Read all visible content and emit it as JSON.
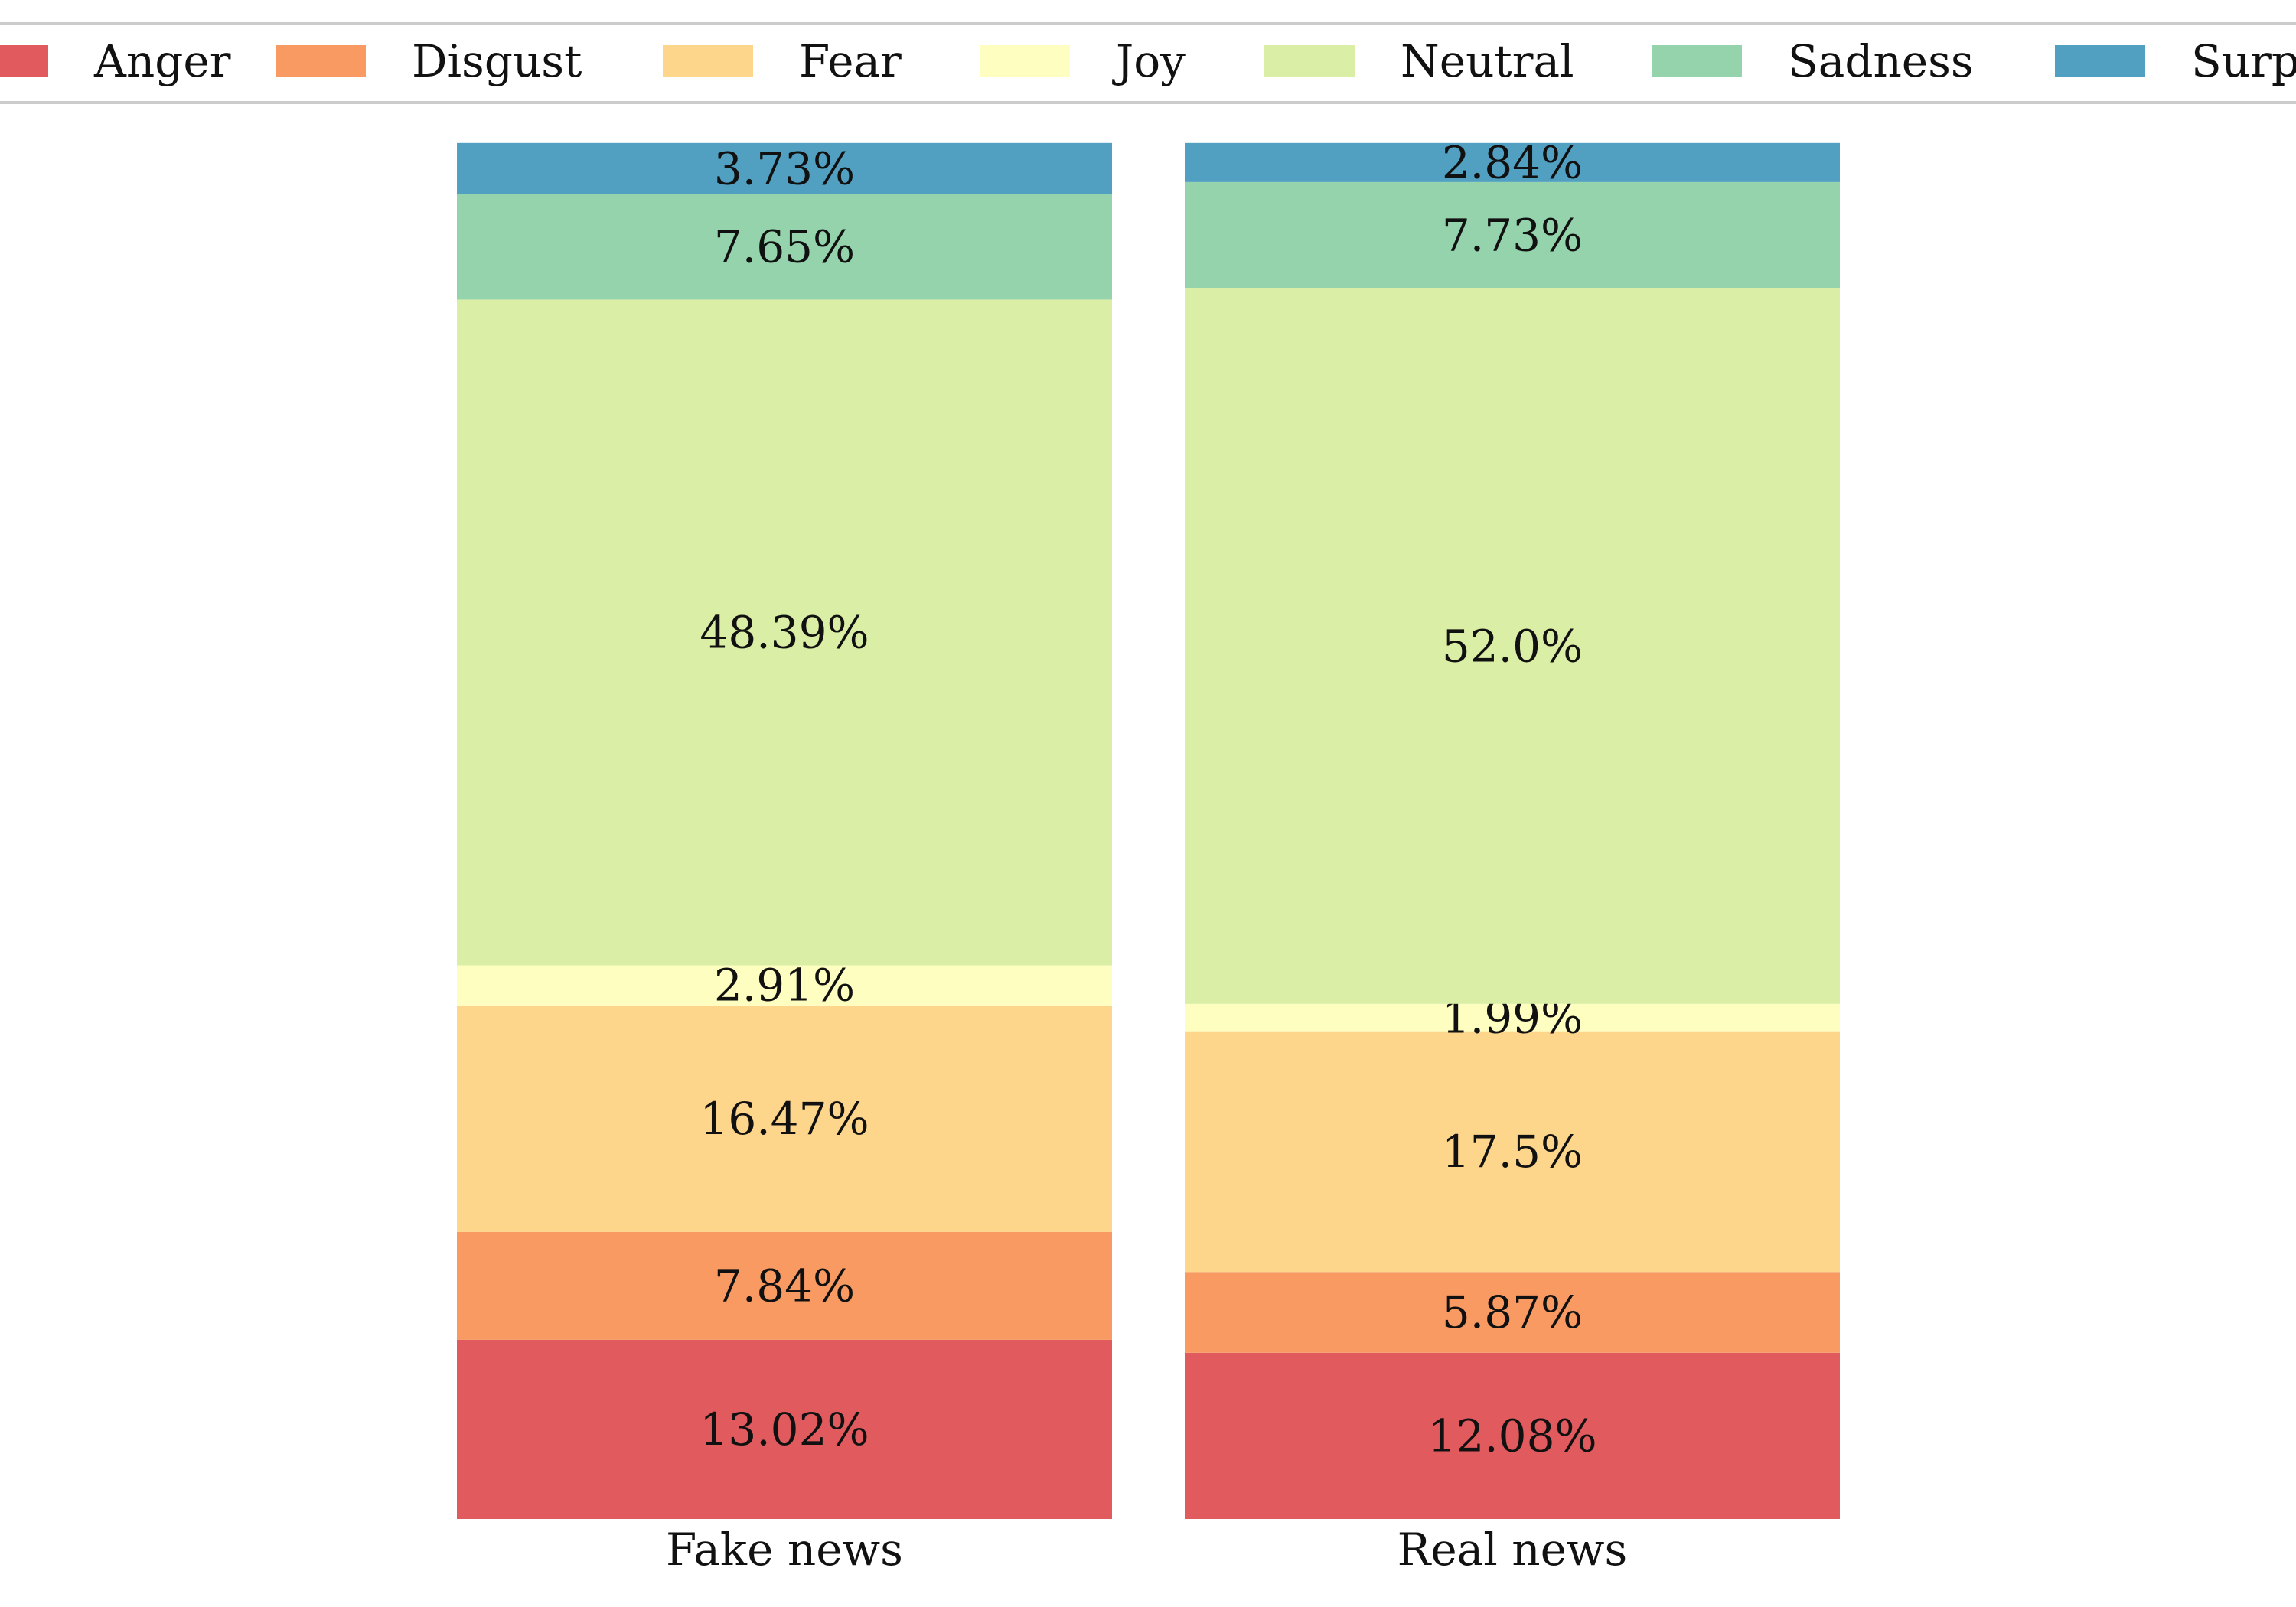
{
  "chart_data": {
    "type": "bar",
    "stacked": true,
    "normalized": true,
    "categories": [
      "Fake news",
      "Real news"
    ],
    "series": [
      {
        "name": "Anger",
        "color": "#e15b5e",
        "values": [
          13.02,
          12.08
        ],
        "labels": [
          "13.02%",
          "12.08%"
        ]
      },
      {
        "name": "Disgust",
        "color": "#f89a62",
        "values": [
          7.84,
          5.87
        ],
        "labels": [
          "7.84%",
          "5.87%"
        ]
      },
      {
        "name": "Fear",
        "color": "#fdd58b",
        "values": [
          16.47,
          17.5
        ],
        "labels": [
          "16.47%",
          "17.5%"
        ]
      },
      {
        "name": "Joy",
        "color": "#fefec1",
        "values": [
          2.91,
          1.99
        ],
        "labels": [
          "2.91%",
          "1.99%"
        ]
      },
      {
        "name": "Neutral",
        "color": "#daeea5",
        "values": [
          48.39,
          52.0
        ],
        "labels": [
          "48.39%",
          "52.0%"
        ]
      },
      {
        "name": "Sadness",
        "color": "#94d3ab",
        "values": [
          7.65,
          7.73
        ],
        "labels": [
          "7.65%",
          "7.73%"
        ]
      },
      {
        "name": "Surprise",
        "color": "#52a0c1",
        "values": [
          3.73,
          2.84
        ],
        "labels": [
          "3.73%",
          "2.84%"
        ]
      }
    ],
    "ylim": [
      0,
      100
    ],
    "grid": false,
    "legend": "top",
    "title": "",
    "xlabel": "",
    "ylabel": ""
  }
}
